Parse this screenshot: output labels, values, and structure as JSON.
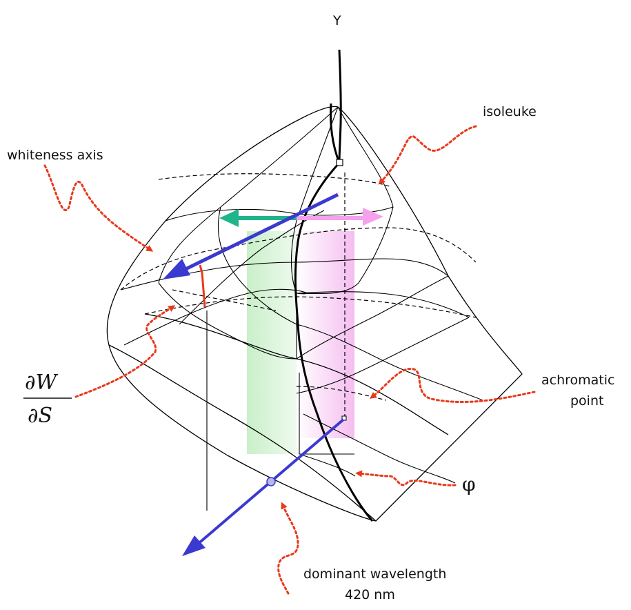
{
  "labels": {
    "y_axis": "Y",
    "isoleuke": "isoleuke",
    "whiteness_axis": "whiteness axis",
    "achromatic_line1": "achromatic",
    "achromatic_line2": "point",
    "phi": "φ",
    "dominant_line1": "dominant wavelength",
    "dominant_line2": "420 nm",
    "partial_num": "∂W",
    "partial_den": "∂S"
  },
  "colors": {
    "annotation_arrow": "#e8391a",
    "axis_arrow": "#3a3ad0",
    "green_arrow": "#20b48a",
    "pink_arrow": "#f7a0ee",
    "green_band": "#cdf0cd",
    "pink_band": "#f7c8f2",
    "red_segment": "#e8391a"
  }
}
